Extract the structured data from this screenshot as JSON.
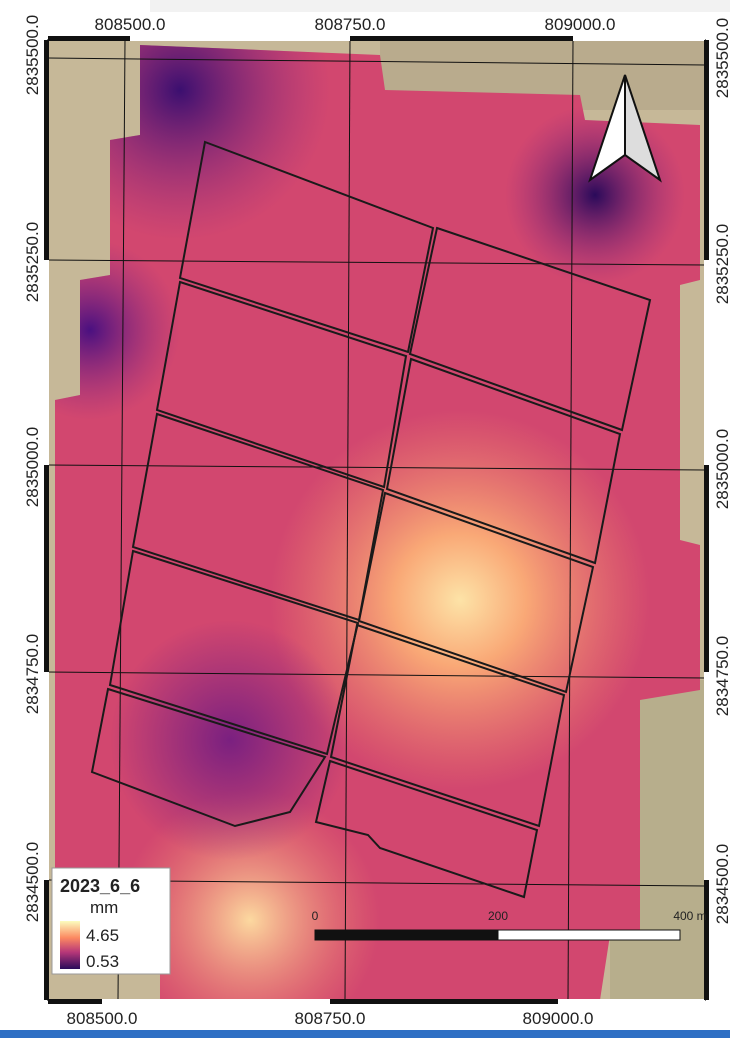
{
  "frame": {
    "top_labels": [
      "808500.0",
      "808750.0",
      "809000.0"
    ],
    "bottom_labels": [
      "808500.0",
      "808750.0",
      "809000.0"
    ],
    "left_labels": [
      "2835500.0",
      "2835250.0",
      "2835000.0",
      "2834750.0",
      "2834500.0"
    ],
    "right_labels": [
      "2835500.0",
      "2835250.0",
      "2835000.0",
      "2834750.0",
      "2834500.0"
    ]
  },
  "legend": {
    "title": "2023_6_6",
    "unit": "mm",
    "max": "4.65",
    "min": "0.53"
  },
  "scale_bar": {
    "labels": [
      "0",
      "200",
      "400 m"
    ]
  }
}
